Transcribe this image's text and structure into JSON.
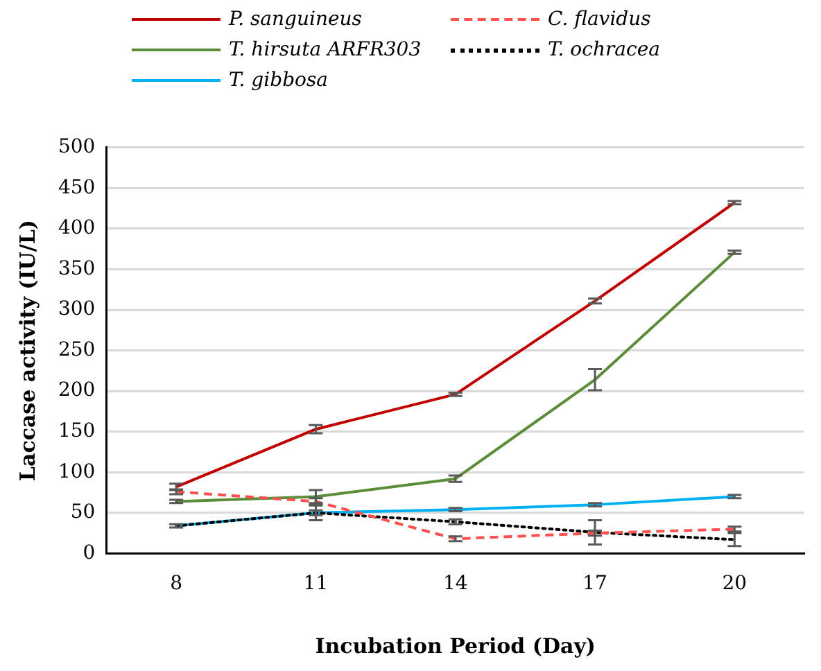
{
  "chart_data": {
    "type": "line",
    "xlabel": "Incubation Period (Day)",
    "ylabel": "Laccase activity (IU/L)",
    "categories": [
      "8",
      "11",
      "14",
      "17",
      "20"
    ],
    "series": [
      {
        "name": "P. sanguineus",
        "color": "#c00000",
        "line_style": "solid",
        "values": [
          82,
          153,
          196,
          311,
          432
        ],
        "errors": [
          4,
          5,
          2,
          3,
          2
        ]
      },
      {
        "name": "C. flavidus",
        "color": "#ff5050",
        "line_style": "dashed",
        "values": [
          76,
          64,
          18,
          25,
          30
        ],
        "errors": [
          3,
          4,
          3,
          3,
          3
        ]
      },
      {
        "name": "T. hirsuta ARFR303",
        "color": "#5b8c3a",
        "line_style": "solid",
        "values": [
          64,
          70,
          92,
          214,
          371
        ],
        "errors": [
          2,
          8,
          4,
          13,
          2
        ]
      },
      {
        "name": "T. ochracea",
        "color": "#000000",
        "line_style": "dotted",
        "values": [
          34,
          50,
          39,
          26,
          17
        ],
        "errors": [
          2,
          9,
          3,
          15,
          8
        ]
      },
      {
        "name": "T. gibbosa",
        "color": "#00b0f0",
        "line_style": "solid",
        "values": [
          34,
          50,
          54,
          60,
          70
        ],
        "errors": [
          null,
          3,
          2,
          2,
          2
        ]
      }
    ],
    "ylim": [
      0,
      500
    ],
    "yticks": [
      0,
      50,
      100,
      150,
      200,
      250,
      300,
      350,
      400,
      450,
      500
    ],
    "grid": "y",
    "legend": "top",
    "marker": "none"
  }
}
